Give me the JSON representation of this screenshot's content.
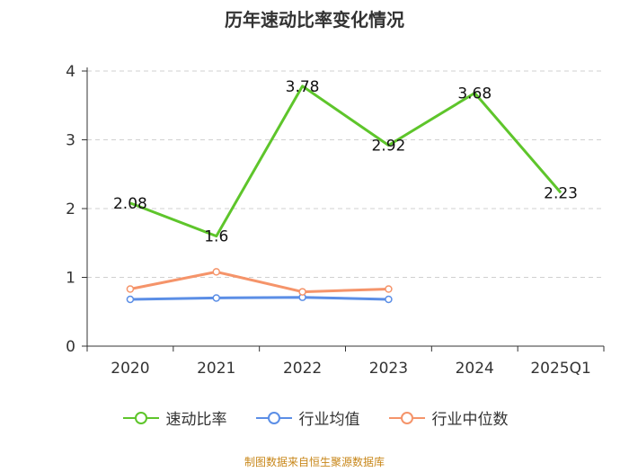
{
  "title": "历年速动比率变化情况",
  "source": "制图数据来自恒生聚源数据库",
  "chart_data": {
    "type": "line",
    "title": "历年速动比率变化情况",
    "categories": [
      "2020",
      "2021",
      "2022",
      "2023",
      "2024",
      "2025Q1"
    ],
    "ylim": [
      0,
      4
    ],
    "yticks": [
      0,
      1,
      2,
      3,
      4
    ],
    "grid": true,
    "legend_position": "bottom",
    "series": [
      {
        "name": "速动比率",
        "color": "#5ec52b",
        "values": [
          2.08,
          1.6,
          3.78,
          2.92,
          3.68,
          2.23
        ],
        "labels": [
          "2.08",
          "1.6",
          "3.78",
          "2.92",
          "3.68",
          "2.23"
        ],
        "show_markers": false
      },
      {
        "name": "行业均值",
        "color": "#5b8ee6",
        "values": [
          0.68,
          0.7,
          0.71,
          0.68,
          null,
          null
        ],
        "show_markers": true
      },
      {
        "name": "行业中位数",
        "color": "#f5946a",
        "values": [
          0.83,
          1.08,
          0.79,
          0.83,
          null,
          null
        ],
        "show_markers": true
      }
    ]
  }
}
